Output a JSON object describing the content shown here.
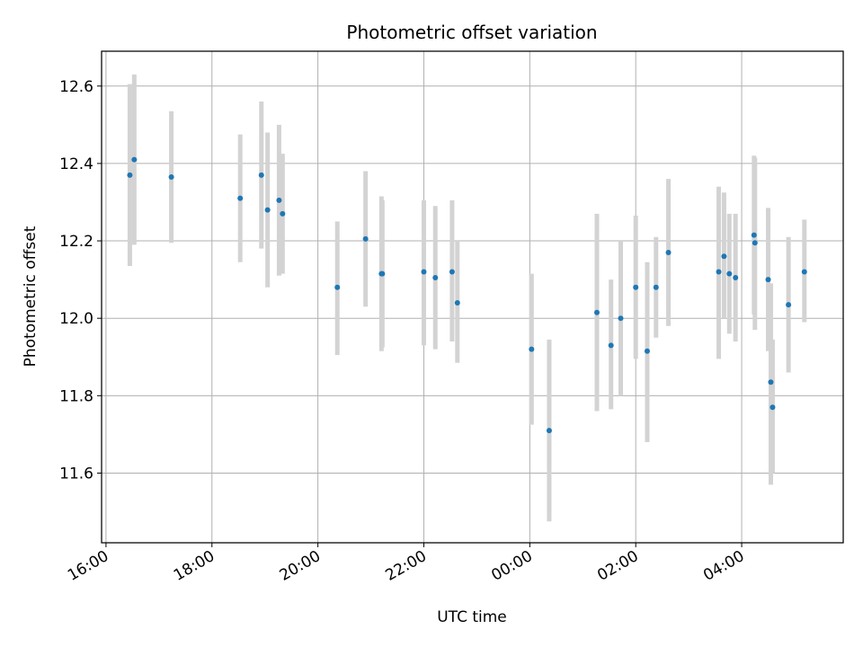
{
  "chart_data": {
    "type": "scatter",
    "title": "Photometric offset variation",
    "xlabel": "UTC time",
    "ylabel": "Photometric offset",
    "x_axis": "time",
    "xlim": [
      "15:55",
      "29:55"
    ],
    "ylim": [
      11.42,
      12.69
    ],
    "x_ticks": [
      "16:00",
      "18:00",
      "20:00",
      "22:00",
      "00:00",
      "02:00",
      "04:00"
    ],
    "y_ticks": [
      "11.6",
      "11.8",
      "12.0",
      "12.2",
      "12.4",
      "12.6"
    ],
    "grid": true,
    "marker_color": "#1f77b4",
    "errorbar_color": "#d3d3d3",
    "series": [
      {
        "points": [
          {
            "time": "16:27",
            "value": 12.37,
            "low": 12.135,
            "high": 12.605
          },
          {
            "time": "16:32",
            "value": 12.41,
            "low": 12.19,
            "high": 12.63
          },
          {
            "time": "17:14",
            "value": 12.365,
            "low": 12.195,
            "high": 12.535
          },
          {
            "time": "18:32",
            "value": 12.31,
            "low": 12.145,
            "high": 12.475
          },
          {
            "time": "18:56",
            "value": 12.37,
            "low": 12.18,
            "high": 12.56
          },
          {
            "time": "19:03",
            "value": 12.28,
            "low": 12.08,
            "high": 12.48
          },
          {
            "time": "19:16",
            "value": 12.305,
            "low": 12.11,
            "high": 12.5
          },
          {
            "time": "19:20",
            "value": 12.27,
            "low": 12.115,
            "high": 12.425
          },
          {
            "time": "20:22",
            "value": 12.08,
            "low": 11.905,
            "high": 12.25
          },
          {
            "time": "20:54",
            "value": 12.205,
            "low": 12.03,
            "high": 12.38
          },
          {
            "time": "21:12",
            "value": 12.115,
            "low": 11.915,
            "high": 12.315
          },
          {
            "time": "21:13",
            "value": 12.115,
            "low": 11.925,
            "high": 12.305
          },
          {
            "time": "22:00",
            "value": 12.12,
            "low": 11.93,
            "high": 12.305
          },
          {
            "time": "22:13",
            "value": 12.105,
            "low": 11.92,
            "high": 12.29
          },
          {
            "time": "22:32",
            "value": 12.12,
            "low": 11.94,
            "high": 12.305
          },
          {
            "time": "22:38",
            "value": 12.04,
            "low": 11.885,
            "high": 12.2
          },
          {
            "time": "00:02",
            "value": 11.92,
            "low": 11.725,
            "high": 12.115
          },
          {
            "time": "00:22",
            "value": 11.71,
            "low": 11.475,
            "high": 11.945
          },
          {
            "time": "01:16",
            "value": 12.015,
            "low": 11.76,
            "high": 12.27
          },
          {
            "time": "01:32",
            "value": 11.93,
            "low": 11.765,
            "high": 12.1
          },
          {
            "time": "01:43",
            "value": 12.0,
            "low": 11.8,
            "high": 12.2
          },
          {
            "time": "02:00",
            "value": 12.08,
            "low": 11.895,
            "high": 12.265
          },
          {
            "time": "02:13",
            "value": 11.915,
            "low": 11.68,
            "high": 12.145
          },
          {
            "time": "02:23",
            "value": 12.08,
            "low": 11.95,
            "high": 12.21
          },
          {
            "time": "02:37",
            "value": 12.17,
            "low": 11.98,
            "high": 12.36
          },
          {
            "time": "03:34",
            "value": 12.12,
            "low": 11.895,
            "high": 12.34
          },
          {
            "time": "03:40",
            "value": 12.16,
            "low": 12.0,
            "high": 12.325
          },
          {
            "time": "03:46",
            "value": 12.115,
            "low": 11.96,
            "high": 12.27
          },
          {
            "time": "03:53",
            "value": 12.105,
            "low": 11.94,
            "high": 12.27
          },
          {
            "time": "04:14",
            "value": 12.215,
            "low": 12.01,
            "high": 12.42
          },
          {
            "time": "04:15",
            "value": 12.195,
            "low": 11.97,
            "high": 12.415
          },
          {
            "time": "04:30",
            "value": 12.1,
            "low": 11.915,
            "high": 12.285
          },
          {
            "time": "04:33",
            "value": 11.835,
            "low": 11.57,
            "high": 12.09
          },
          {
            "time": "04:35",
            "value": 11.77,
            "low": 11.6,
            "high": 11.945
          },
          {
            "time": "04:53",
            "value": 12.035,
            "low": 11.86,
            "high": 12.21
          },
          {
            "time": "05:11",
            "value": 12.12,
            "low": 11.99,
            "high": 12.255
          }
        ]
      }
    ]
  }
}
